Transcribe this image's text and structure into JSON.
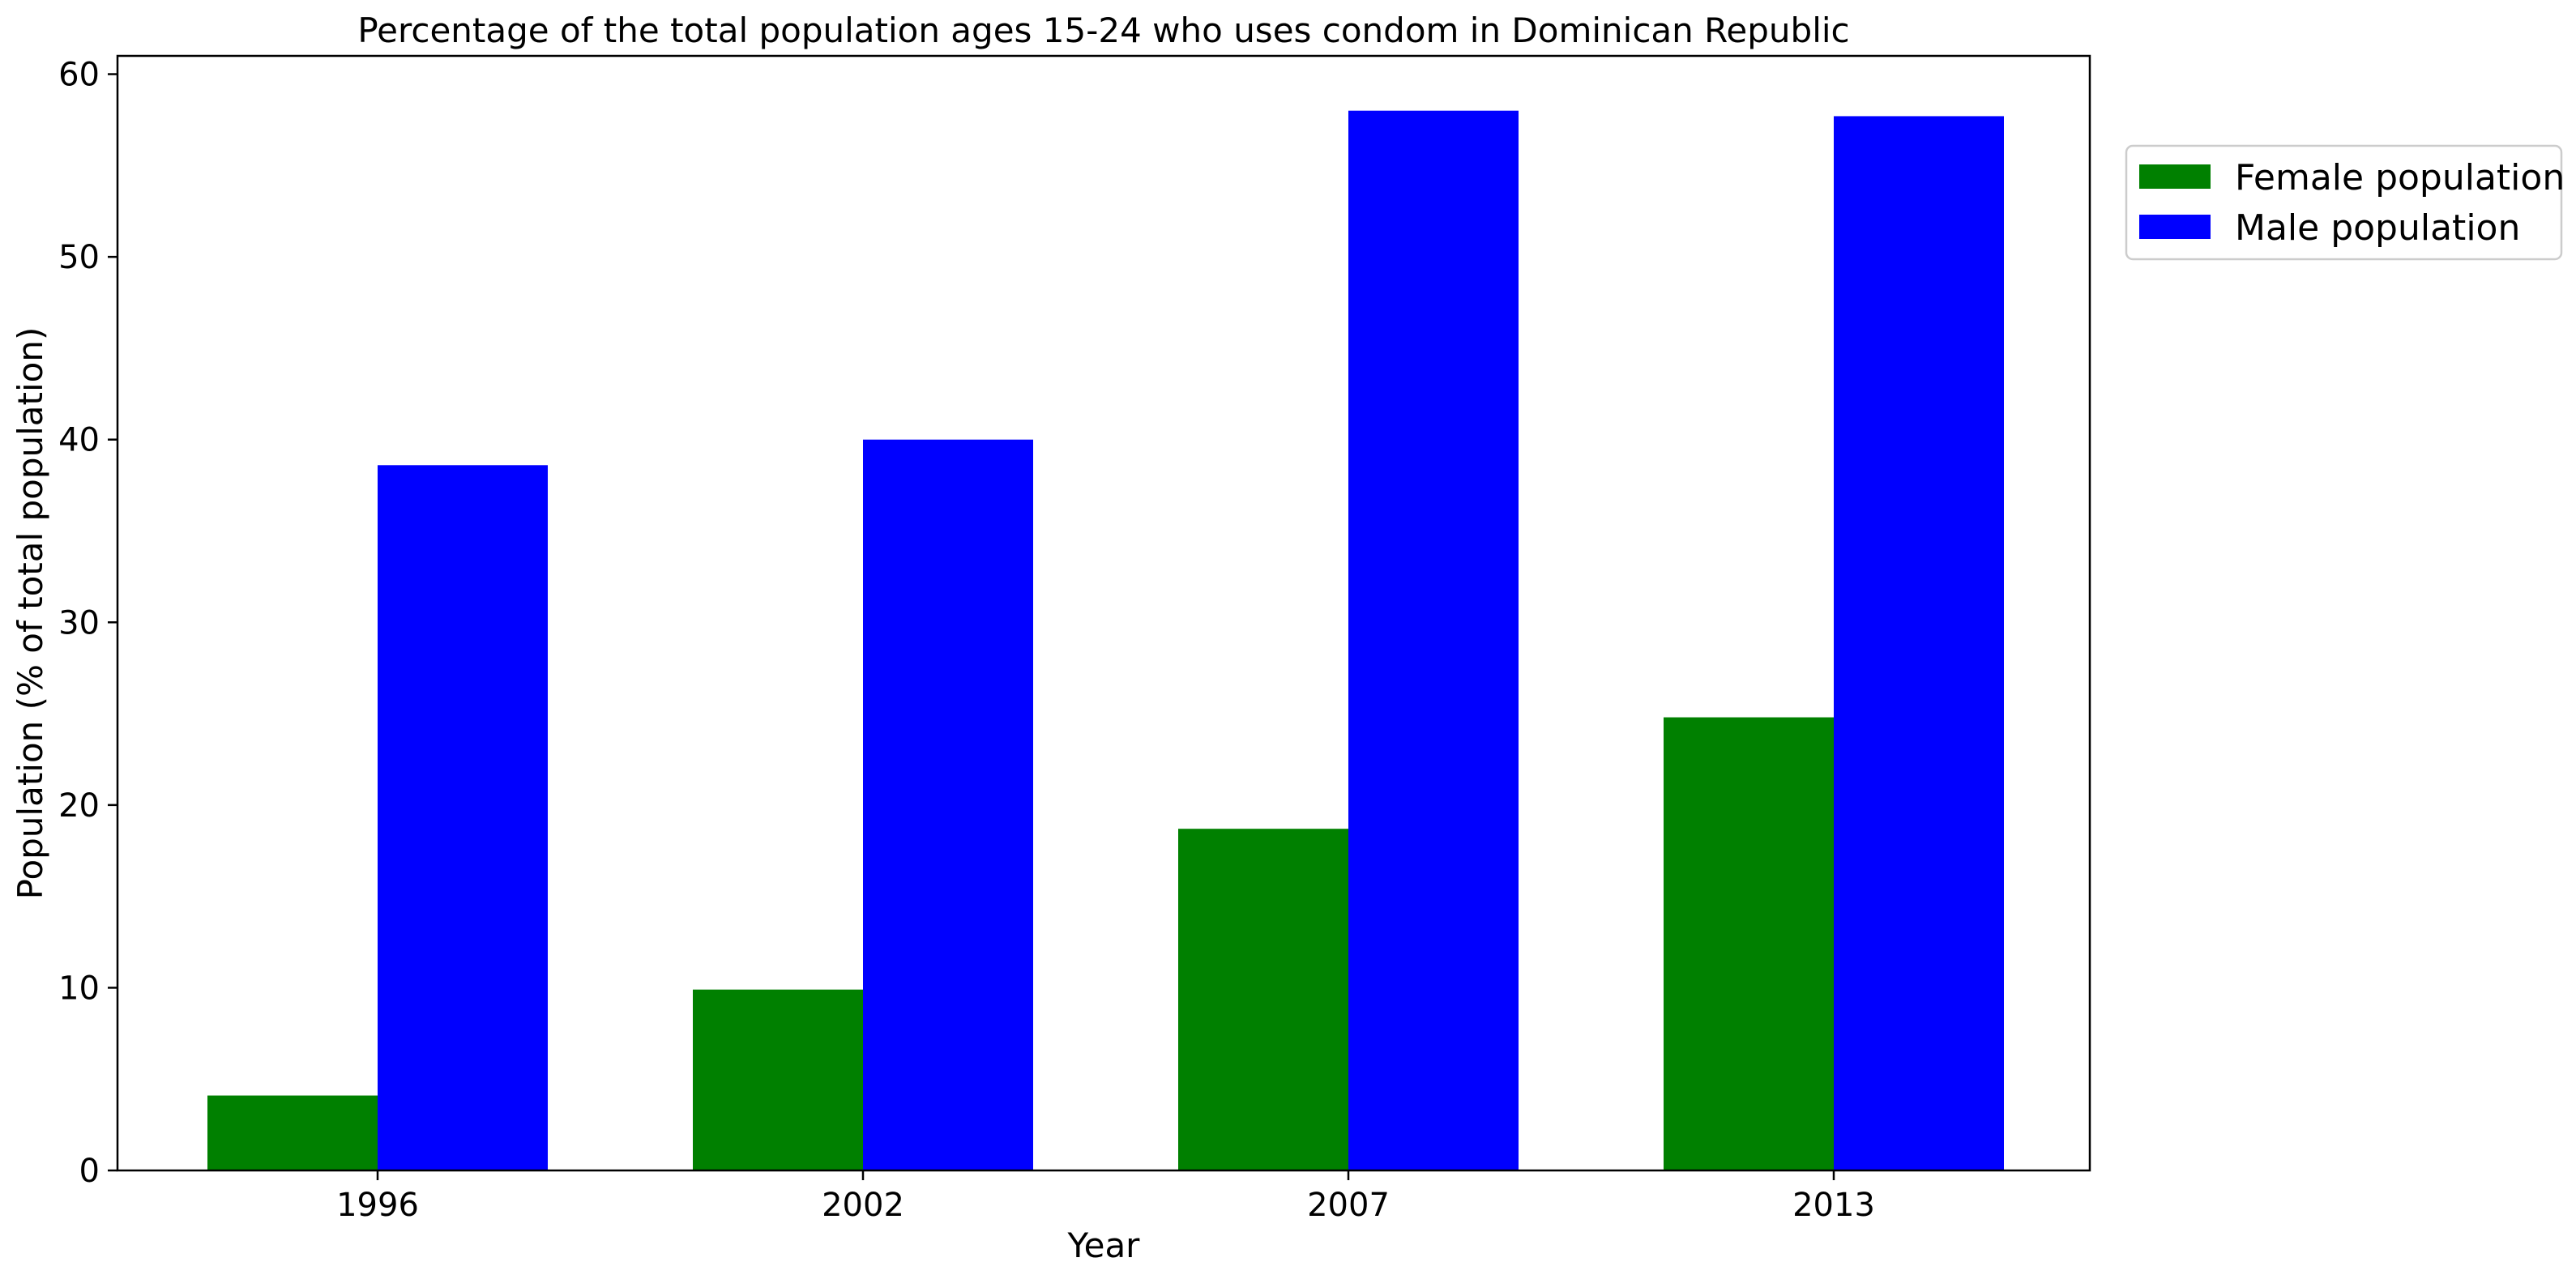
{
  "chart_data": {
    "type": "bar",
    "title": "Percentage of the total population ages 15-24 who uses condom in Dominican Republic",
    "xlabel": "Year",
    "ylabel": "Population (% of total population)",
    "categories": [
      "1996",
      "2002",
      "2007",
      "2013"
    ],
    "series": [
      {
        "name": "Female population",
        "color": "#008000",
        "values": [
          4.1,
          9.9,
          18.7,
          24.8
        ]
      },
      {
        "name": "Male population",
        "color": "#0000ff",
        "values": [
          38.6,
          40.0,
          58.0,
          57.7
        ]
      }
    ],
    "ylim": [
      0,
      61
    ],
    "yticks": [
      0,
      10,
      20,
      30,
      40,
      50,
      60
    ],
    "grid": false,
    "legend_position": "outside-right-top"
  }
}
